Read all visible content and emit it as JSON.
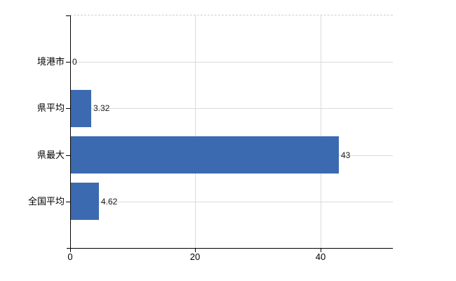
{
  "chart_data": {
    "type": "bar",
    "orientation": "horizontal",
    "title": "",
    "xlabel": "",
    "ylabel": "",
    "categories": [
      "境港市",
      "県平均",
      "県最大",
      "全国平均"
    ],
    "values": [
      0,
      3.32,
      43,
      4.62
    ],
    "value_labels": [
      "0",
      "3.32",
      "43",
      "4.62"
    ],
    "x_ticks": [
      0,
      20,
      40
    ],
    "x_tick_labels": [
      "0",
      "20",
      "40"
    ],
    "xlim": [
      0,
      51.6
    ],
    "grid": true,
    "legend": false,
    "colors": {
      "bar": "#3b6ab0",
      "horizontal_gridline": "#d7ddd5",
      "vertical_gridline": "#dadada",
      "top_border": "#cfcfcf",
      "axis": "#000000",
      "text": "#000000"
    }
  }
}
